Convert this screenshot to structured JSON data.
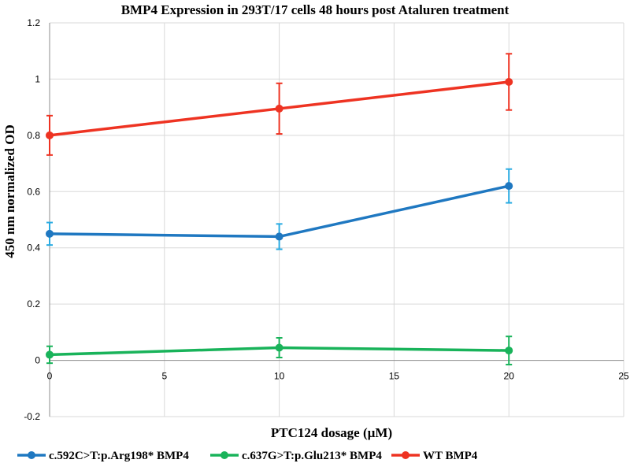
{
  "chart_data": {
    "type": "line",
    "title": "BMP4 Expression in 293T/17 cells 48 hours post Ataluren treatment",
    "xlabel": "PTC124 dosage (µM)",
    "ylabel": "450 nm normalized OD",
    "xlim": [
      0,
      25
    ],
    "ylim": [
      -0.2,
      1.2
    ],
    "xticks": [
      0,
      5,
      10,
      15,
      20,
      25
    ],
    "yticks": [
      -0.2,
      0,
      0.2,
      0.4,
      0.6,
      0.8,
      1,
      1.2
    ],
    "xtick_labels": [
      "0",
      "5",
      "10",
      "15",
      "20",
      "25"
    ],
    "ytick_labels": [
      "-0.2",
      "0",
      "0.2",
      "0.4",
      "0.6",
      "0.8",
      "1",
      "1.2"
    ],
    "grid": true,
    "legend_position": "bottom",
    "x": [
      0,
      10,
      20
    ],
    "series": [
      {
        "name": "c.592C>T:p.Arg198* BMP4",
        "color": "#1f78c1",
        "error_color": "#29abe2",
        "values": [
          0.45,
          0.44,
          0.62
        ],
        "errors": [
          0.04,
          0.045,
          0.06
        ]
      },
      {
        "name": "c.637G>T:p.Glu213* BMP4",
        "color": "#19b35a",
        "error_color": "#19b35a",
        "values": [
          0.02,
          0.045,
          0.035
        ],
        "errors": [
          0.03,
          0.035,
          0.05
        ]
      },
      {
        "name": "WT BMP4",
        "color": "#ee3322",
        "error_color": "#ee3322",
        "values": [
          0.8,
          0.895,
          0.99
        ],
        "errors": [
          0.07,
          0.09,
          0.1
        ]
      }
    ]
  }
}
